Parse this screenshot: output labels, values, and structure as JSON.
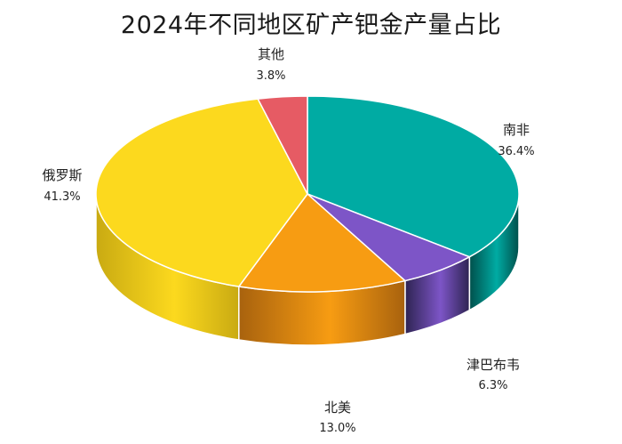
{
  "chart_data": {
    "type": "pie",
    "title": "2024年不同地区矿产钯金产量占比",
    "slices": [
      {
        "name": "南非",
        "value": 36.4,
        "label": "36.4%",
        "color": "#00ABA3",
        "side": "#004F4B"
      },
      {
        "name": "津巴布韦",
        "value": 6.3,
        "label": "6.3%",
        "color": "#7D55C7",
        "side": "#2E2452"
      },
      {
        "name": "北美",
        "value": 13.0,
        "label": "13.0%",
        "color": "#F79C12",
        "side": "#A8620E"
      },
      {
        "name": "俄罗斯",
        "value": 41.3,
        "label": "41.3%",
        "color": "#FCD91E",
        "side": "#C9AA12"
      },
      {
        "name": "其他",
        "value": 3.8,
        "label": "3.8%",
        "color": "#E65B64",
        "side": "#9E3238"
      }
    ]
  }
}
